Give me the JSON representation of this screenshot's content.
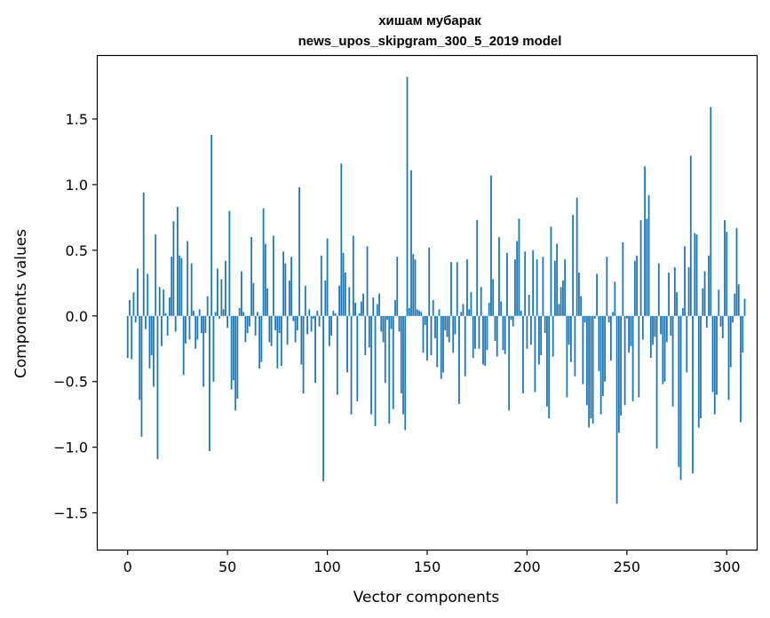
{
  "chart_data": {
    "type": "bar",
    "title": "хишам мубарак",
    "subtitle": "news_upos_skipgram_300_5_2019 model",
    "xlabel": "Vector components",
    "ylabel": "Components values",
    "xlim": [
      -15,
      315
    ],
    "ylim": [
      -1.78,
      1.98
    ],
    "x_ticks": [
      0,
      50,
      100,
      150,
      200,
      250,
      300
    ],
    "x_tick_labels": [
      "0",
      "50",
      "100",
      "150",
      "200",
      "250",
      "300"
    ],
    "y_ticks": [
      -1.5,
      -1.0,
      -0.5,
      0.0,
      0.5,
      1.0,
      1.5
    ],
    "y_tick_labels": [
      "−1.5",
      "−1.0",
      "−0.5",
      "0.0",
      "0.5",
      "1.0",
      "1.5"
    ],
    "grid": false,
    "bar_color": "#1f77b4",
    "values": [
      -0.32,
      0.12,
      -0.33,
      0.18,
      -0.05,
      0.36,
      -0.64,
      -0.92,
      0.94,
      -0.1,
      0.32,
      -0.4,
      -0.3,
      -0.54,
      0.62,
      -1.09,
      0.22,
      -0.23,
      0.2,
      0.02,
      -0.15,
      0.14,
      0.45,
      0.72,
      -0.12,
      0.83,
      0.46,
      0.44,
      -0.45,
      -0.21,
      0.57,
      -0.18,
      0.4,
      0.04,
      -0.25,
      -0.18,
      0.05,
      -0.13,
      -0.54,
      -0.13,
      0.15,
      -1.03,
      1.38,
      -0.5,
      0.03,
      0.36,
      -0.02,
      0.28,
      0.05,
      0.42,
      -0.09,
      0.8,
      -0.56,
      -0.49,
      -0.72,
      -0.63,
      0.06,
      0.34,
      0.03,
      -0.2,
      -0.13,
      -0.08,
      0.6,
      0.25,
      -0.15,
      0.03,
      -0.4,
      -0.35,
      0.82,
      0.55,
      0.21,
      -0.2,
      -0.23,
      0.61,
      -0.11,
      -0.4,
      -0.13,
      -0.38,
      0.49,
      0.4,
      -0.22,
      0.27,
      0.45,
      -0.04,
      -0.2,
      -0.11,
      0.98,
      -0.37,
      -0.59,
      0.23,
      -0.14,
      0.05,
      -0.12,
      -0.02,
      -0.51,
      0.04,
      -0.08,
      0.46,
      -1.26,
      0.27,
      0.59,
      -0.23,
      -0.15,
      0.04,
      0.02,
      -0.6,
      0.23,
      1.16,
      0.48,
      0.33,
      -0.43,
      0.22,
      -0.75,
      0.61,
      0.1,
      -0.65,
      0.02,
      0.11,
      0.17,
      -0.3,
      0.53,
      -0.24,
      -0.75,
      0.14,
      -0.84,
      0.09,
      0.17,
      -0.12,
      -0.2,
      -0.51,
      -0.03,
      -0.82,
      -0.1,
      -0.71,
      0.12,
      0.45,
      -0.12,
      -0.59,
      -0.75,
      -0.87,
      1.82,
      0.06,
      1.11,
      0.47,
      0.43,
      0.05,
      0.04,
      0.03,
      -0.28,
      -0.07,
      -0.34,
      0.52,
      -0.3,
      0.12,
      -0.17,
      -0.39,
      0.05,
      -0.48,
      -0.43,
      -0.11,
      -0.16,
      -0.2,
      0.41,
      -0.28,
      -0.14,
      0.41,
      -0.67,
      0.03,
      0.09,
      -0.46,
      0.43,
      0.05,
      0.18,
      -0.32,
      -0.25,
      0.73,
      -0.25,
      0.22,
      -0.37,
      -0.38,
      -0.26,
      0.1,
      1.07,
      0.28,
      -0.19,
      -0.31,
      0.6,
      0.11,
      -0.26,
      -0.29,
      0.48,
      -0.72,
      -0.03,
      -0.08,
      0.43,
      0.57,
      0.74,
      0.04,
      -0.59,
      0.49,
      -0.25,
      0.16,
      -0.22,
      0.5,
      -0.58,
      0.43,
      -0.37,
      -0.3,
      0.45,
      -0.13,
      -0.69,
      -0.78,
      0.68,
      -0.31,
      0.42,
      0.55,
      0.09,
      0.22,
      0.27,
      0.43,
      -0.62,
      -0.22,
      -0.35,
      0.77,
      -0.46,
      0.9,
      0.33,
      0.15,
      -0.52,
      -0.05,
      -0.68,
      -0.85,
      -0.78,
      -0.82,
      -0.02,
      0.32,
      -0.42,
      -0.75,
      -0.61,
      -0.5,
      0.45,
      -0.05,
      -0.34,
      0.03,
      0.26,
      -1.43,
      -0.89,
      -0.76,
      0.56,
      -0.68,
      -0.02,
      -0.28,
      -0.23,
      -0.65,
      0.42,
      0.46,
      -0.62,
      0.73,
      -0.18,
      1.14,
      0.74,
      0.92,
      -0.32,
      -0.22,
      -0.16,
      -1.01,
      0.4,
      -0.14,
      -0.52,
      -0.5,
      -0.2,
      0.33,
      -0.15,
      -0.69,
      0.37,
      0.18,
      -1.15,
      -1.25,
      0.06,
      0.53,
      -0.43,
      0.37,
      1.22,
      -1.2,
      0.63,
      0.62,
      -0.85,
      -0.78,
      0.21,
      0.34,
      -0.09,
      0.46,
      1.59,
      -0.58,
      -0.75,
      -0.6,
      0.2,
      -0.08,
      -0.17,
      0.73,
      0.64,
      -0.64,
      -0.39,
      -0.05,
      0.17,
      0.67,
      0.24,
      -0.81,
      -0.28,
      0.13
    ]
  }
}
